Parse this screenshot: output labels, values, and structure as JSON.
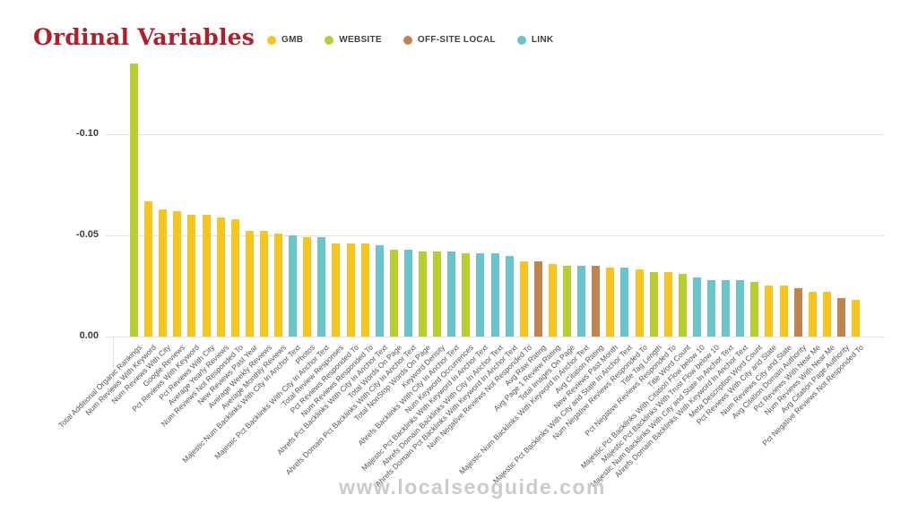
{
  "title": "Ordinal Variables",
  "watermark": "www.localseoguide.com",
  "legend": [
    {
      "label": "GMB",
      "color": "#F7C51E"
    },
    {
      "label": "WEBSITE",
      "color": "#B8CE2F"
    },
    {
      "label": "OFF-SITE LOCAL",
      "color": "#C0854F"
    },
    {
      "label": "LINK",
      "color": "#6AC4CD"
    }
  ],
  "chart_data": {
    "type": "bar",
    "title": "Ordinal Variables",
    "xlabel": "",
    "ylabel": "",
    "grid": true,
    "legend_position": "top-center",
    "y_axis": {
      "inverted": true,
      "ticks": [
        -0.1,
        -0.05,
        0.0
      ],
      "tick_labels": [
        "-0.10",
        "-0.05",
        "0.00"
      ],
      "range": [
        0,
        -0.14
      ]
    },
    "colors": {
      "GMB": "#F7C51E",
      "WEBSITE": "#B8CE2F",
      "OFF-SITE LOCAL": "#C0854F",
      "LINK": "#6AC4CD"
    },
    "bars": [
      {
        "label": "Total Additional Organic Rankings",
        "category": "WEBSITE",
        "value": -0.135
      },
      {
        "label": "Num Reviews With Keyword",
        "category": "GMB",
        "value": -0.067
      },
      {
        "label": "Num Reviews With City",
        "category": "GMB",
        "value": -0.063
      },
      {
        "label": "Google Reviews",
        "category": "GMB",
        "value": -0.062
      },
      {
        "label": "Pct Reviews With Keyword",
        "category": "GMB",
        "value": -0.06
      },
      {
        "label": "Pct Reviews With City",
        "category": "GMB",
        "value": -0.06
      },
      {
        "label": "Average Yearly Reviews",
        "category": "GMB",
        "value": -0.059
      },
      {
        "label": "Num Reviews Not Responded To",
        "category": "GMB",
        "value": -0.058
      },
      {
        "label": "New Reviews Past Year",
        "category": "GMB",
        "value": -0.052
      },
      {
        "label": "Average Weekly Reviews",
        "category": "GMB",
        "value": -0.052
      },
      {
        "label": "Average Monthly Reviews",
        "category": "GMB",
        "value": -0.051
      },
      {
        "label": "Majestic Num Backlinks With City In Anchor Text",
        "category": "LINK",
        "value": -0.05
      },
      {
        "label": "Photos",
        "category": "GMB",
        "value": -0.049
      },
      {
        "label": "Majestic Pct Backlinks With City In Anchor Text",
        "category": "LINK",
        "value": -0.049
      },
      {
        "label": "Total Review Responses",
        "category": "GMB",
        "value": -0.046
      },
      {
        "label": "Pct Reviews Responded To",
        "category": "GMB",
        "value": -0.046
      },
      {
        "label": "Num Reviews Responded To",
        "category": "GMB",
        "value": -0.046
      },
      {
        "label": "Ahrefs Pct Backlinks With City In Anchor Text",
        "category": "LINK",
        "value": -0.045
      },
      {
        "label": "Total Words On Page",
        "category": "WEBSITE",
        "value": -0.043
      },
      {
        "label": "Ahrefs Domain Pct Backlinks With City In Anchor Text",
        "category": "LINK",
        "value": -0.043
      },
      {
        "label": "Total NonStop Words On Page",
        "category": "WEBSITE",
        "value": -0.042
      },
      {
        "label": "Keyword Density",
        "category": "WEBSITE",
        "value": -0.042
      },
      {
        "label": "Ahrefs Backlinks With City In Anchor Text",
        "category": "LINK",
        "value": -0.042
      },
      {
        "label": "Num Keyword Occurrences",
        "category": "WEBSITE",
        "value": -0.041
      },
      {
        "label": "Majestic Pct Backlinks With Keyword In Anchor Text",
        "category": "LINK",
        "value": -0.041
      },
      {
        "label": "Ahrefs Domain Backlinks With City In Anchor Text",
        "category": "LINK",
        "value": -0.041
      },
      {
        "label": "Ahrefs Domain Pct Backlinks With Keyword In Anchor Text",
        "category": "LINK",
        "value": -0.04
      },
      {
        "label": "Num Negative Reviews Not Responded To",
        "category": "GMB",
        "value": -0.037
      },
      {
        "label": "Avg Raw Rating",
        "category": "OFF-SITE LOCAL",
        "value": -0.037
      },
      {
        "label": "Avg Page 1 Review Rating",
        "category": "GMB",
        "value": -0.036
      },
      {
        "label": "Total Images On Page",
        "category": "WEBSITE",
        "value": -0.035
      },
      {
        "label": "Majestic Num Backlinks With Keyword In Anchor Text",
        "category": "LINK",
        "value": -0.035
      },
      {
        "label": "Avg Citation Rating",
        "category": "OFF-SITE LOCAL",
        "value": -0.035
      },
      {
        "label": "New Reviews Past Month",
        "category": "GMB",
        "value": -0.034
      },
      {
        "label": "Majestic Pct Backlinks With City and State In Anchor Text",
        "category": "LINK",
        "value": -0.034
      },
      {
        "label": "Num Negative Reviews Responded To",
        "category": "GMB",
        "value": -0.033
      },
      {
        "label": "Title Tag Length",
        "category": "WEBSITE",
        "value": -0.032
      },
      {
        "label": "Pct Negative Reviews Responded To",
        "category": "GMB",
        "value": -0.032
      },
      {
        "label": "Title Word Count",
        "category": "WEBSITE",
        "value": -0.031
      },
      {
        "label": "Majestic Pct Backlinks With Citation Flow below 10",
        "category": "LINK",
        "value": -0.029
      },
      {
        "label": "Majestic Pct Backlinks With Trust Flow below 10",
        "category": "LINK",
        "value": -0.028
      },
      {
        "label": "Majestic Num Backlinks With City and State In Anchor Text",
        "category": "LINK",
        "value": -0.028
      },
      {
        "label": "Ahrefs Domain Backlinks With Keyword In Anchor Text",
        "category": "LINK",
        "value": -0.028
      },
      {
        "label": "Meta Description Word Count",
        "category": "WEBSITE",
        "value": -0.027
      },
      {
        "label": "Pct Reviews With City and State",
        "category": "GMB",
        "value": -0.025
      },
      {
        "label": "Num Reviews City and State",
        "category": "GMB",
        "value": -0.025
      },
      {
        "label": "Avg Citation Domain Authority",
        "category": "OFF-SITE LOCAL",
        "value": -0.024
      },
      {
        "label": "Pct Reviews With Near Me",
        "category": "GMB",
        "value": -0.022
      },
      {
        "label": "Num Reviews With Near Me",
        "category": "GMB",
        "value": -0.022
      },
      {
        "label": "Avg Citation Page Authority",
        "category": "OFF-SITE LOCAL",
        "value": -0.019
      },
      {
        "label": "Pct Negative Reviews Not Responded To",
        "category": "GMB",
        "value": -0.018
      }
    ]
  }
}
